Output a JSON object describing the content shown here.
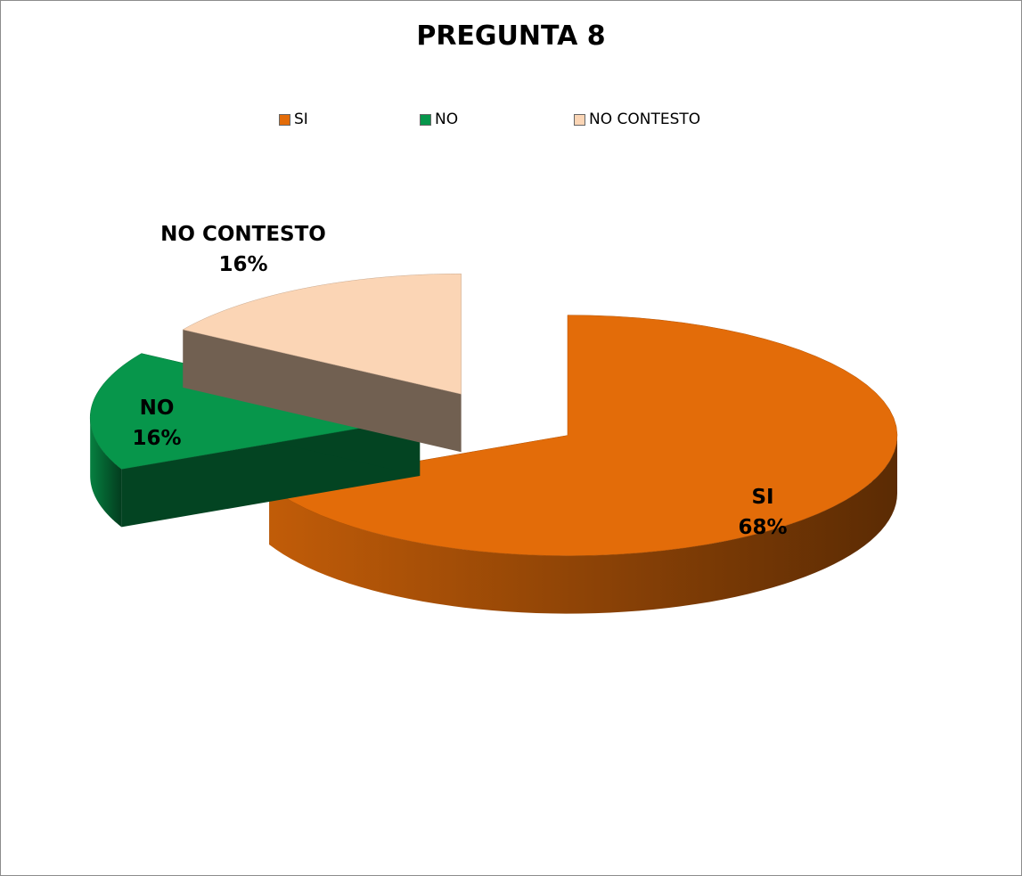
{
  "chart_data": {
    "type": "pie",
    "title": "PREGUNTA 8",
    "categories": [
      "SI",
      "NO",
      "NO CONTESTO"
    ],
    "values": [
      68,
      16,
      16
    ],
    "value_labels": [
      "68%",
      "16%",
      "16%"
    ],
    "colors": [
      "#e36c09",
      "#07964b",
      "#fbd5b5"
    ],
    "legend": "top"
  }
}
